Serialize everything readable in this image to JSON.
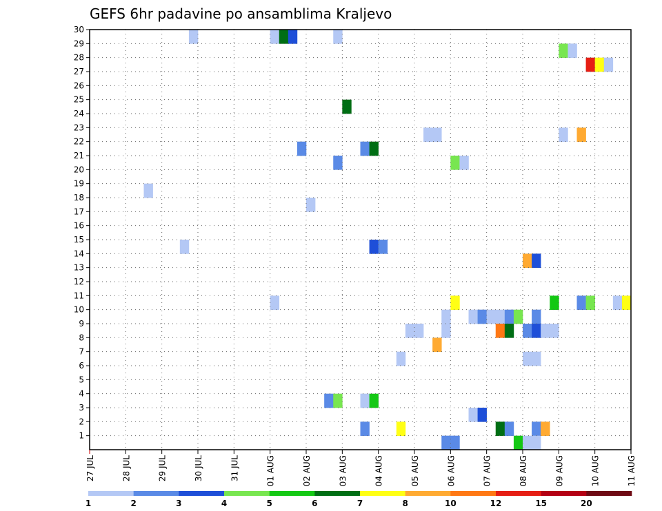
{
  "chart_data": {
    "type": "heatmap",
    "title": "GEFS 6hr padavine po ansamblima Kraljevo",
    "xlabel": "",
    "ylabel": "",
    "x_ticks": [
      "27 JUL",
      "28 JUL",
      "29 JUL",
      "30 JUL",
      "31 JUL",
      "01 AUG",
      "02 AUG",
      "03 AUG",
      "04 AUG",
      "05 AUG",
      "06 AUG",
      "07 AUG",
      "08 AUG",
      "09 AUG",
      "10 AUG",
      "11 AUG"
    ],
    "y_ticks": [
      "1",
      "2",
      "3",
      "4",
      "5",
      "6",
      "7",
      "8",
      "9",
      "10",
      "11",
      "12",
      "13",
      "14",
      "15",
      "16",
      "17",
      "18",
      "19",
      "20",
      "21",
      "22",
      "23",
      "24",
      "25",
      "26",
      "27",
      "28",
      "29",
      "30"
    ],
    "xlim_days": [
      0,
      15
    ],
    "ylim": [
      0,
      30
    ],
    "grid": true,
    "colorbar": {
      "labels": [
        "1",
        "2",
        "3",
        "4",
        "5",
        "6",
        "7",
        "8",
        "10",
        "12",
        "15",
        "20"
      ],
      "colors": [
        "#b4c8f5",
        "#5a8ae6",
        "#1e4fd8",
        "#78e650",
        "#14c814",
        "#006e14",
        "#ffff14",
        "#ffaa32",
        "#ff7814",
        "#e61e14",
        "#b40014",
        "#6e0a14"
      ]
    },
    "cells": [
      {
        "t": 11,
        "m": 29,
        "c": 0
      },
      {
        "t": 20,
        "m": 29,
        "c": 0
      },
      {
        "t": 21,
        "m": 29,
        "c": 5
      },
      {
        "t": 22,
        "m": 29,
        "c": 2
      },
      {
        "t": 27,
        "m": 29,
        "c": 0
      },
      {
        "t": 52,
        "m": 28,
        "c": 3
      },
      {
        "t": 53,
        "m": 28,
        "c": 0
      },
      {
        "t": 55,
        "m": 27,
        "c": 9
      },
      {
        "t": 56,
        "m": 27,
        "c": 6
      },
      {
        "t": 57,
        "m": 27,
        "c": 0
      },
      {
        "t": 28,
        "m": 24,
        "c": 5
      },
      {
        "t": 37,
        "m": 22,
        "c": 0
      },
      {
        "t": 38,
        "m": 22,
        "c": 0
      },
      {
        "t": 52,
        "m": 22,
        "c": 0
      },
      {
        "t": 54,
        "m": 22,
        "c": 7
      },
      {
        "t": 23,
        "m": 21,
        "c": 1
      },
      {
        "t": 30,
        "m": 21,
        "c": 1
      },
      {
        "t": 31,
        "m": 21,
        "c": 5
      },
      {
        "t": 27,
        "m": 20,
        "c": 1
      },
      {
        "t": 40,
        "m": 20,
        "c": 3
      },
      {
        "t": 41,
        "m": 20,
        "c": 0
      },
      {
        "t": 6,
        "m": 18,
        "c": 0
      },
      {
        "t": 24,
        "m": 17,
        "c": 0
      },
      {
        "t": 10,
        "m": 14,
        "c": 0
      },
      {
        "t": 31,
        "m": 14,
        "c": 2
      },
      {
        "t": 32,
        "m": 14,
        "c": 1
      },
      {
        "t": 48,
        "m": 13,
        "c": 7
      },
      {
        "t": 49,
        "m": 13,
        "c": 2
      },
      {
        "t": 20,
        "m": 10,
        "c": 0
      },
      {
        "t": 40,
        "m": 10,
        "c": 6
      },
      {
        "t": 51,
        "m": 10,
        "c": 4
      },
      {
        "t": 54,
        "m": 10,
        "c": 1
      },
      {
        "t": 55,
        "m": 10,
        "c": 3
      },
      {
        "t": 58,
        "m": 10,
        "c": 0
      },
      {
        "t": 59,
        "m": 10,
        "c": 6
      },
      {
        "t": 39,
        "m": 9,
        "c": 0
      },
      {
        "t": 42,
        "m": 9,
        "c": 0
      },
      {
        "t": 43,
        "m": 9,
        "c": 1
      },
      {
        "t": 44,
        "m": 9,
        "c": 0
      },
      {
        "t": 45,
        "m": 9,
        "c": 0
      },
      {
        "t": 46,
        "m": 9,
        "c": 1
      },
      {
        "t": 47,
        "m": 9,
        "c": 3
      },
      {
        "t": 49,
        "m": 9,
        "c": 1
      },
      {
        "t": 35,
        "m": 8,
        "c": 0
      },
      {
        "t": 36,
        "m": 8,
        "c": 0
      },
      {
        "t": 39,
        "m": 8,
        "c": 0
      },
      {
        "t": 45,
        "m": 8,
        "c": 8
      },
      {
        "t": 46,
        "m": 8,
        "c": 5
      },
      {
        "t": 48,
        "m": 8,
        "c": 1
      },
      {
        "t": 49,
        "m": 8,
        "c": 2
      },
      {
        "t": 50,
        "m": 8,
        "c": 0
      },
      {
        "t": 51,
        "m": 8,
        "c": 0
      },
      {
        "t": 38,
        "m": 7,
        "c": 7
      },
      {
        "t": 34,
        "m": 6,
        "c": 0
      },
      {
        "t": 48,
        "m": 6,
        "c": 0
      },
      {
        "t": 49,
        "m": 6,
        "c": 0
      },
      {
        "t": 26,
        "m": 3,
        "c": 1
      },
      {
        "t": 27,
        "m": 3,
        "c": 3
      },
      {
        "t": 30,
        "m": 3,
        "c": 0
      },
      {
        "t": 31,
        "m": 3,
        "c": 4
      },
      {
        "t": 42,
        "m": 2,
        "c": 0
      },
      {
        "t": 43,
        "m": 2,
        "c": 2
      },
      {
        "t": 30,
        "m": 1,
        "c": 1
      },
      {
        "t": 34,
        "m": 1,
        "c": 6
      },
      {
        "t": 45,
        "m": 1,
        "c": 5
      },
      {
        "t": 46,
        "m": 1,
        "c": 1
      },
      {
        "t": 49,
        "m": 1,
        "c": 1
      },
      {
        "t": 50,
        "m": 1,
        "c": 7
      },
      {
        "t": 39,
        "m": 0,
        "c": 1
      },
      {
        "t": 40,
        "m": 0,
        "c": 1
      },
      {
        "t": 47,
        "m": 0,
        "c": 4
      },
      {
        "t": 48,
        "m": 0,
        "c": 0
      },
      {
        "t": 49,
        "m": 0,
        "c": 0
      }
    ]
  }
}
